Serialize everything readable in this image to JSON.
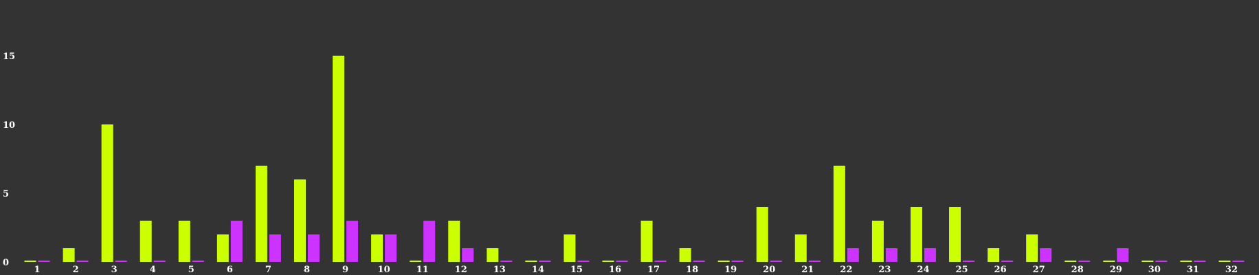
{
  "chart_data": {
    "type": "bar",
    "title": "",
    "xlabel": "",
    "ylabel": "",
    "ylim": [
      0,
      18
    ],
    "yticks": [
      0,
      5,
      10,
      15
    ],
    "grid": false,
    "legend": "none",
    "categories": [
      "1",
      "2",
      "3",
      "4",
      "5",
      "6",
      "7",
      "8",
      "9",
      "10",
      "11",
      "12",
      "13",
      "14",
      "15",
      "16",
      "17",
      "18",
      "19",
      "20",
      "21",
      "22",
      "23",
      "24",
      "25",
      "26",
      "27",
      "28",
      "29",
      "30",
      "31",
      "32"
    ],
    "series": [
      {
        "color": "#ccff00",
        "values": [
          0,
          1,
          10,
          3,
          3,
          2,
          7,
          6,
          15,
          2,
          0,
          3,
          1,
          0,
          2,
          0,
          3,
          1,
          0,
          4,
          2,
          7,
          3,
          4,
          4,
          1,
          2,
          0,
          0,
          0,
          0,
          0
        ]
      },
      {
        "color": "#cc33ff",
        "values": [
          0,
          0,
          0,
          0,
          0,
          3,
          2,
          2,
          3,
          2,
          3,
          1,
          0,
          0,
          0,
          0,
          0,
          0,
          0,
          0,
          0,
          1,
          1,
          1,
          0,
          0,
          1,
          0,
          1,
          0,
          0,
          0
        ]
      }
    ]
  }
}
